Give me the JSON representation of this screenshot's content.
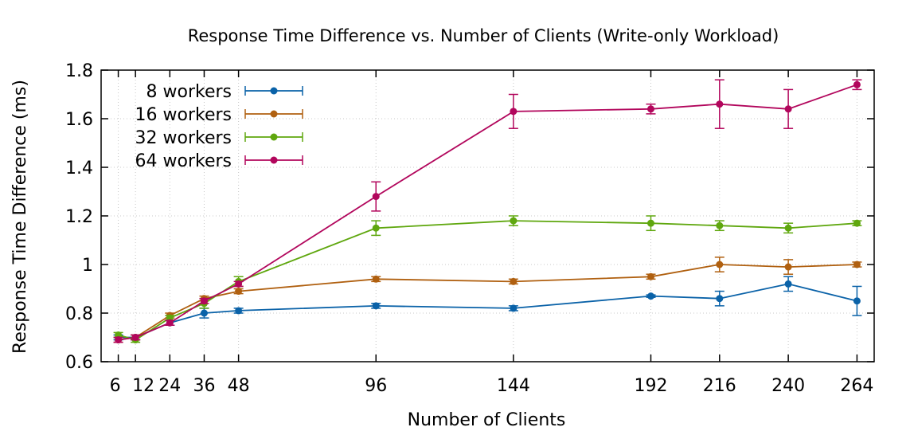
{
  "chart_data": {
    "type": "line",
    "title": "Response Time Difference vs. Number of Clients (Write-only Workload)",
    "xlabel": "Number of Clients",
    "ylabel": "Response Time Difference (ms)",
    "xlim": [
      0,
      270
    ],
    "ylim": [
      0.6,
      1.8
    ],
    "x_ticks": [
      6,
      12,
      24,
      36,
      48,
      96,
      144,
      192,
      216,
      240,
      264
    ],
    "x_tick_labels": [
      "6",
      "12",
      "24",
      "36",
      "48",
      "96",
      "144",
      "192",
      "216",
      "240",
      "264"
    ],
    "y_ticks": [
      0.6,
      0.8,
      1.0,
      1.2,
      1.4,
      1.6,
      1.8
    ],
    "y_tick_labels": [
      "0.6",
      "0.8",
      "1",
      "1.2",
      "1.4",
      "1.6",
      "1.8"
    ],
    "grid": true,
    "legend_position": "top-left",
    "x": [
      6,
      12,
      24,
      36,
      48,
      96,
      144,
      192,
      216,
      240,
      264
    ],
    "series": [
      {
        "name": "8 workers",
        "color": "#0a62a8",
        "values": [
          0.7,
          0.7,
          0.76,
          0.8,
          0.81,
          0.83,
          0.82,
          0.87,
          0.86,
          0.92,
          0.85
        ],
        "errors": [
          0.01,
          0.01,
          0.01,
          0.02,
          0.01,
          0.01,
          0.01,
          0.005,
          0.03,
          0.03,
          0.06
        ]
      },
      {
        "name": "16 workers",
        "color": "#b06010",
        "values": [
          0.69,
          0.7,
          0.79,
          0.86,
          0.89,
          0.94,
          0.93,
          0.95,
          1.0,
          0.99,
          1.0
        ],
        "errors": [
          0.01,
          0.01,
          0.01,
          0.01,
          0.01,
          0.01,
          0.01,
          0.01,
          0.03,
          0.03,
          0.01
        ]
      },
      {
        "name": "32 workers",
        "color": "#5fa70e",
        "values": [
          0.71,
          0.69,
          0.78,
          0.84,
          0.93,
          1.15,
          1.18,
          1.17,
          1.16,
          1.15,
          1.17
        ],
        "errors": [
          0.01,
          0.01,
          0.01,
          0.02,
          0.02,
          0.03,
          0.02,
          0.03,
          0.02,
          0.02,
          0.01
        ]
      },
      {
        "name": "64 workers",
        "color": "#b2065c",
        "values": [
          0.69,
          0.7,
          0.76,
          0.85,
          0.92,
          1.28,
          1.63,
          1.64,
          1.66,
          1.64,
          1.74
        ],
        "errors": [
          0.01,
          0.01,
          0.01,
          0.01,
          0.01,
          0.06,
          0.07,
          0.02,
          0.1,
          0.08,
          0.02
        ]
      }
    ]
  }
}
